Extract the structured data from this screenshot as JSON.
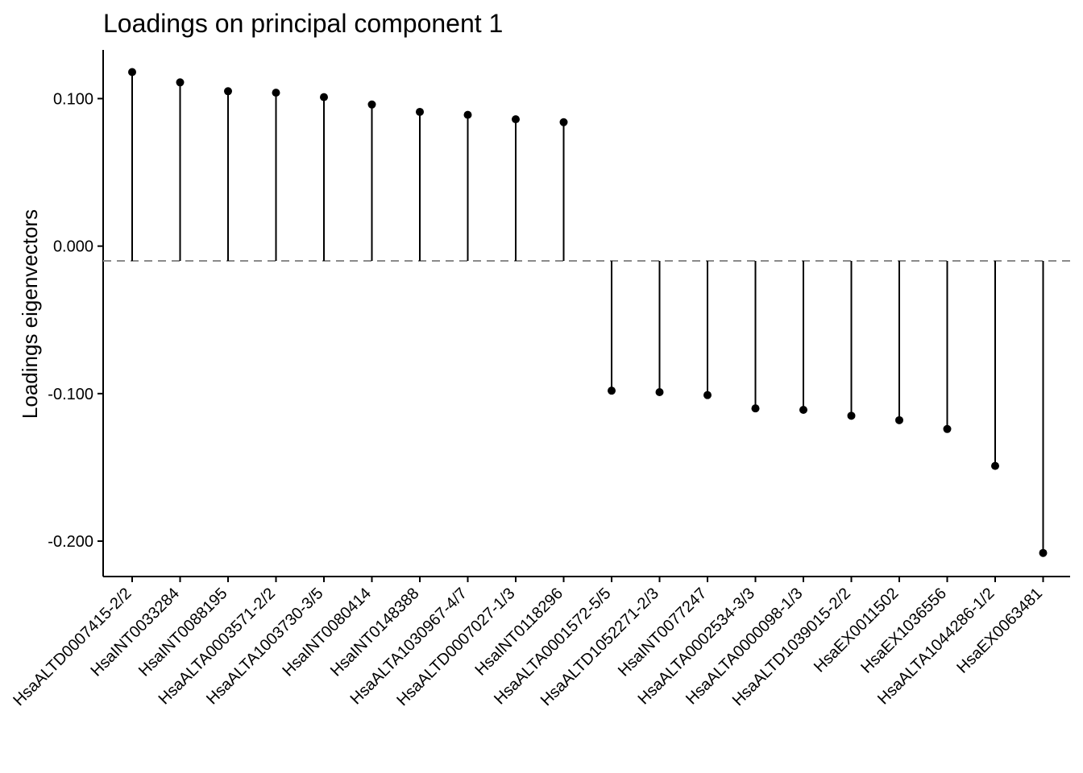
{
  "chart_data": {
    "type": "lollipop",
    "title": "Loadings on principal component 1",
    "xlabel": "",
    "ylabel": "Loadings eigenvectors",
    "baseline": -0.01,
    "ylim": [
      -0.224,
      0.133
    ],
    "yticks": [
      0.1,
      0.0,
      -0.1,
      -0.2
    ],
    "ytick_labels": [
      "0.100",
      "0.000",
      "-0.100",
      "-0.200"
    ],
    "categories": [
      "HsaALTD0007415-2/2",
      "HsaINT0033284",
      "HsaINT0088195",
      "HsaALTA0003571-2/2",
      "HsaALTA1003730-3/5",
      "HsaINT0080414",
      "HsaINT0148388",
      "HsaALTA1030967-4/7",
      "HsaALTD0007027-1/3",
      "HsaINT0118296",
      "HsaALTA0001572-5/5",
      "HsaALTD1052271-2/3",
      "HsaINT0077247",
      "HsaALTA0002534-3/3",
      "HsaALTA0000098-1/3",
      "HsaALTD1039015-2/2",
      "HsaEX0011502",
      "HsaEX1036556",
      "HsaALTA1044286-1/2",
      "HsaEX0063481"
    ],
    "values": [
      0.118,
      0.111,
      0.105,
      0.104,
      0.101,
      0.096,
      0.091,
      0.089,
      0.086,
      0.084,
      -0.098,
      -0.099,
      -0.101,
      -0.11,
      -0.111,
      -0.115,
      -0.118,
      -0.124,
      -0.149,
      -0.208
    ],
    "grid": false,
    "legend": "none",
    "colors": {
      "stem": "#000000",
      "point": "#000000",
      "baseline": "#8a8a8a",
      "axis": "#000000"
    }
  }
}
